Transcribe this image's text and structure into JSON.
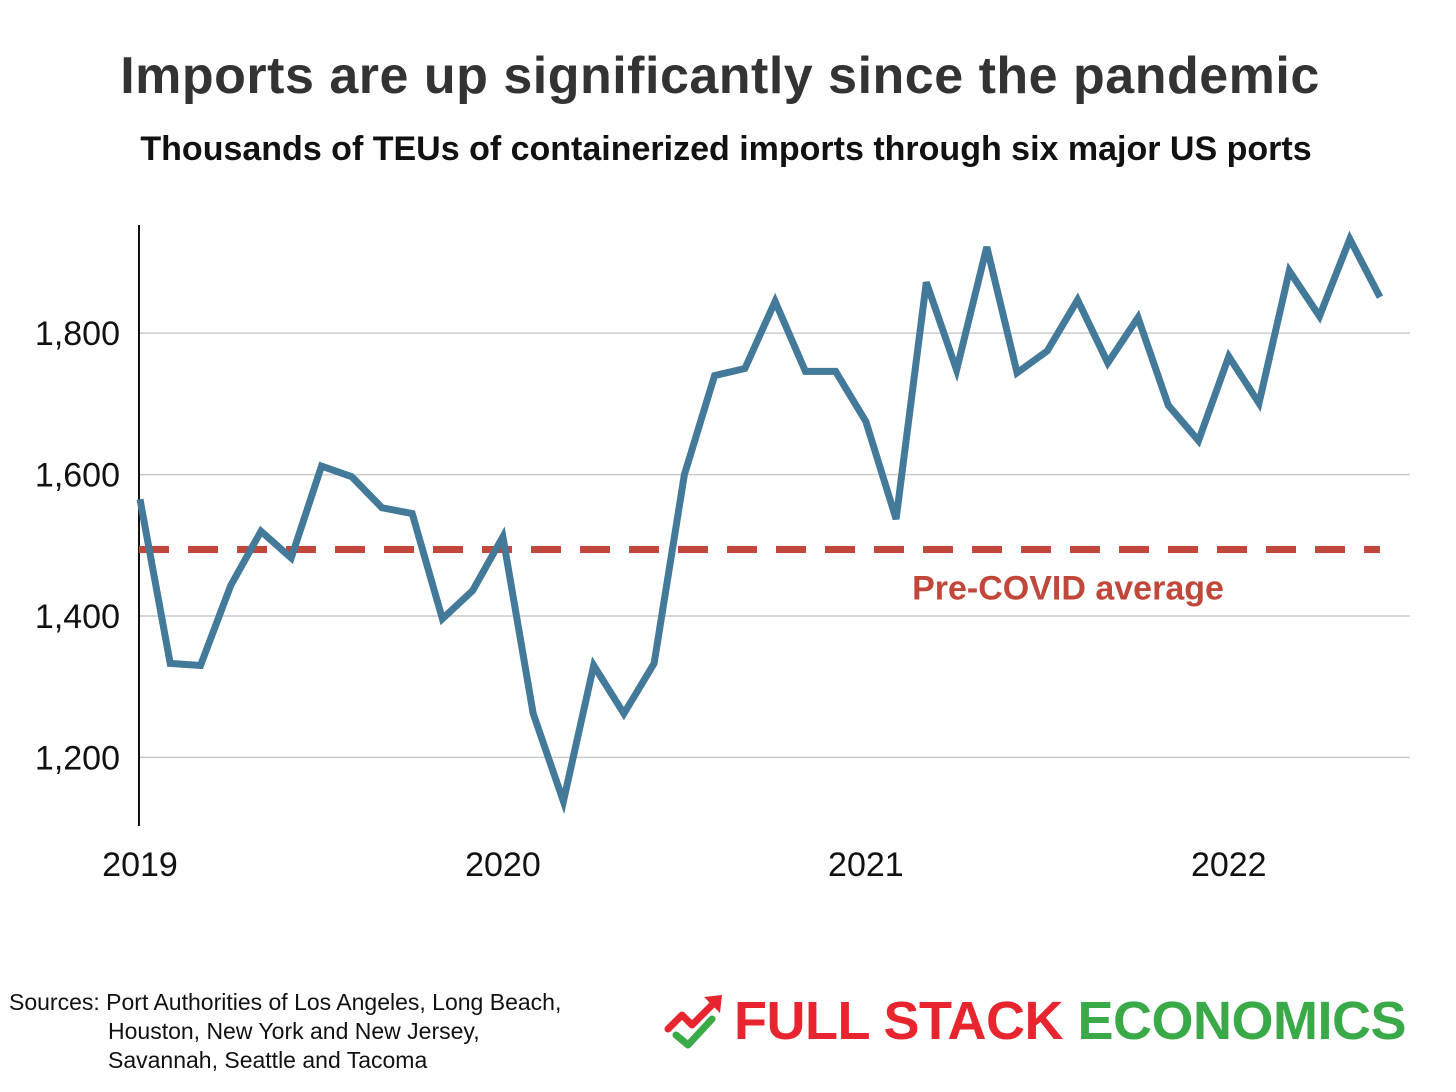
{
  "title": "Imports are up significantly since the pandemic",
  "subtitle": "Thousands of TEUs of containerized imports through six major US ports",
  "colors": {
    "line": "#447a99",
    "reference": "#c0473a",
    "grid": "#cccccc",
    "logo_red": "#e8242f",
    "logo_green": "#3aaa49"
  },
  "chart_data": {
    "type": "line",
    "title": "Imports are up significantly since the pandemic",
    "subtitle": "Thousands of TEUs of containerized imports through six major US ports",
    "xlabel": "",
    "ylabel": "",
    "x": [
      "2019-01",
      "2019-02",
      "2019-03",
      "2019-04",
      "2019-05",
      "2019-06",
      "2019-07",
      "2019-08",
      "2019-09",
      "2019-10",
      "2019-11",
      "2019-12",
      "2020-01",
      "2020-02",
      "2020-03",
      "2020-04",
      "2020-05",
      "2020-06",
      "2020-07",
      "2020-08",
      "2020-09",
      "2020-10",
      "2020-11",
      "2020-12",
      "2021-01",
      "2021-02",
      "2021-03",
      "2021-04",
      "2021-05",
      "2021-06",
      "2021-07",
      "2021-08",
      "2021-09",
      "2021-10",
      "2021-11",
      "2021-12",
      "2022-01",
      "2022-02",
      "2022-03",
      "2022-04",
      "2022-05",
      "2022-06"
    ],
    "series": [
      {
        "values": [
          1565,
          1333,
          1330,
          1443,
          1520,
          1482,
          1612,
          1597,
          1553,
          1545,
          1396,
          1436,
          1512,
          1262,
          1138,
          1330,
          1262,
          1333,
          1600,
          1740,
          1750,
          1845,
          1746,
          1746,
          1675,
          1537,
          1872,
          1748,
          1922,
          1744,
          1775,
          1847,
          1758,
          1822,
          1698,
          1648,
          1767,
          1701,
          1888,
          1824,
          1933,
          1851
        ]
      }
    ],
    "reference_line": {
      "label": "Pre-COVID average",
      "value": 1494
    },
    "xticks": [
      "2019",
      "2020",
      "2021",
      "2022"
    ],
    "xtick_values": [
      "2019-01",
      "2020-01",
      "2021-01",
      "2022-01"
    ],
    "yticks": [
      1200,
      1400,
      1600,
      1800
    ],
    "ytick_labels": [
      "1,200",
      "1,400",
      "1,600",
      "1,800"
    ],
    "ylim": [
      1103,
      1953
    ],
    "grid": "horizontal"
  },
  "footer": {
    "sources_line1": "Sources: Port Authorities of Los Angeles, Long Beach,",
    "sources_line2": "Houston, New York and New Jersey,",
    "sources_line3": "Savannah, Seattle and Tacoma"
  },
  "logo": {
    "part1": "FULL STACK",
    "part2": "ECONOMICS",
    "icon": "trend-up-arrow-check-icon"
  }
}
